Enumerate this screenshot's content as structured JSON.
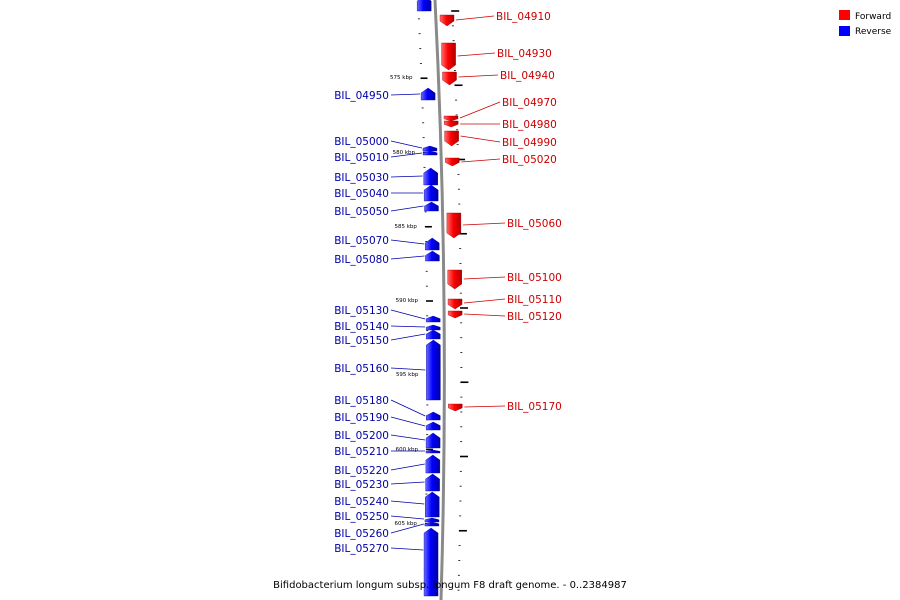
{
  "legend": {
    "items": [
      {
        "label": "Forward",
        "color": "#ff0000"
      },
      {
        "label": "Reverse",
        "color": "#0000ff"
      }
    ]
  },
  "caption": "Bifidobacterium longum subsp. longum F8 draft genome. - 0..2384987",
  "scale_labels": [
    "575 kbp",
    "580 kbp",
    "585 kbp",
    "590 kbp",
    "595 kbp",
    "600 kbp",
    "605 kbp"
  ],
  "forward_genes": [
    "BIL_04910",
    "BIL_04930",
    "BIL_04940",
    "BIL_04970",
    "BIL_04980",
    "BIL_04990",
    "BIL_05020",
    "BIL_05060",
    "BIL_05100",
    "BIL_05110",
    "BIL_05120",
    "BIL_05170"
  ],
  "reverse_genes": [
    "BIL_04950",
    "BIL_05000",
    "BIL_05010",
    "BIL_05030",
    "BIL_05040",
    "BIL_05050",
    "BIL_05070",
    "BIL_05080",
    "BIL_05130",
    "BIL_05140",
    "BIL_05150",
    "BIL_05160",
    "BIL_05180",
    "BIL_05190",
    "BIL_05200",
    "BIL_05210",
    "BIL_05220",
    "BIL_05230",
    "BIL_05240",
    "BIL_05250",
    "BIL_05260",
    "BIL_05270"
  ],
  "colors": {
    "forward": "#ff0000",
    "reverse": "#0000ff",
    "forward_label": "#cc0000",
    "reverse_label": "#0000aa",
    "backbone": "#808080"
  }
}
